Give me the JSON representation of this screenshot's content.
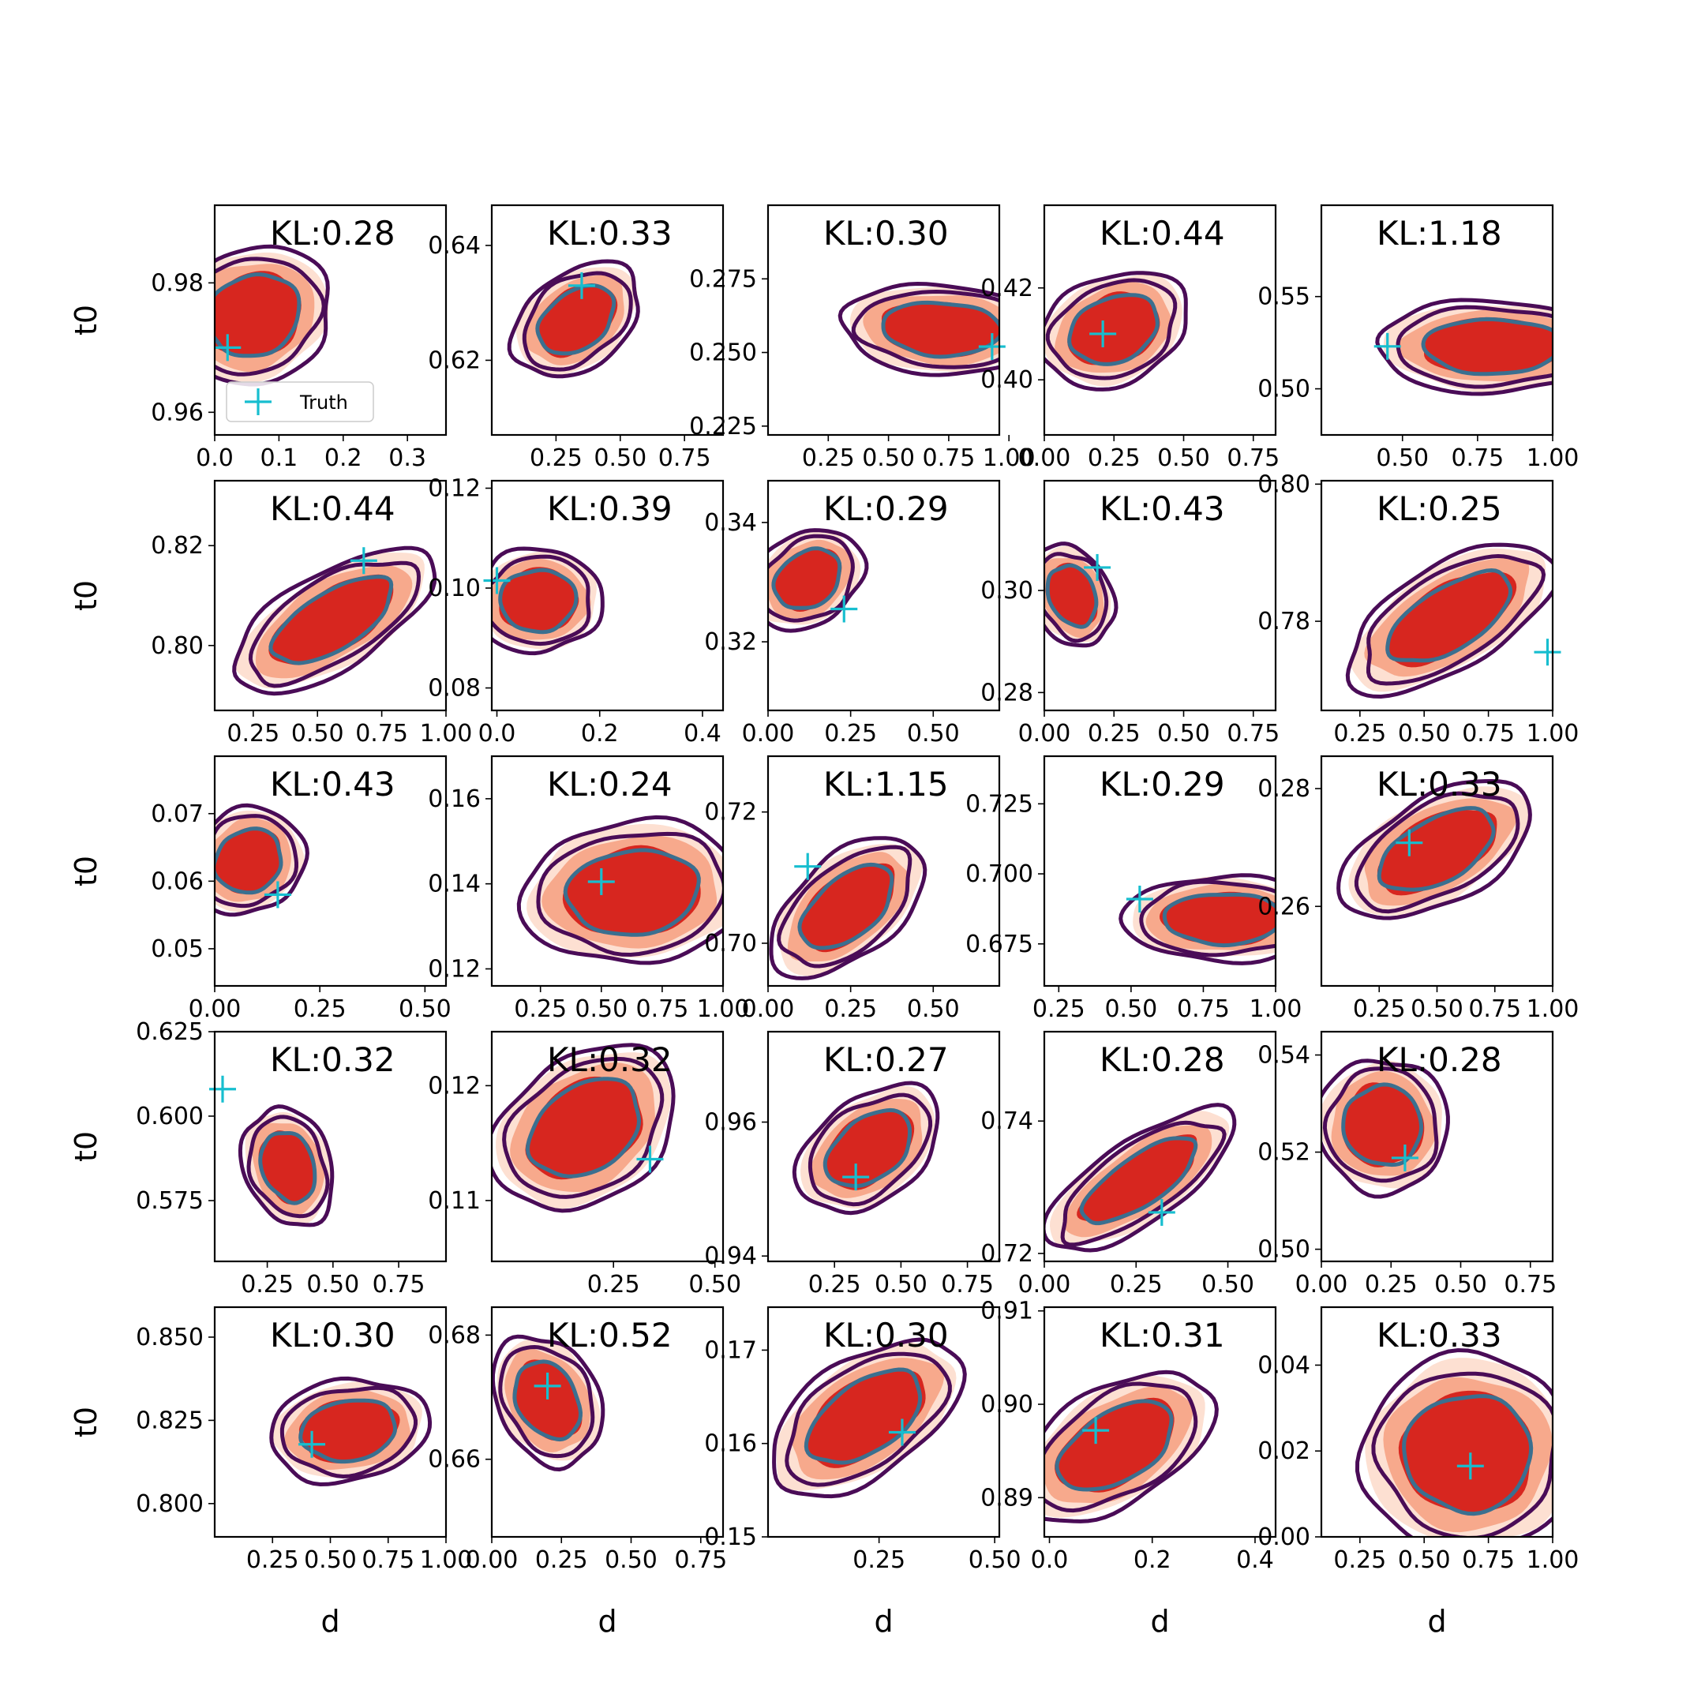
{
  "colors": {
    "truth": "#17becf",
    "fill_light": "#fde0d2",
    "fill_mid": "#f7a98c",
    "fill_dark": "#d7261f",
    "contour_outer": "#4a0c57",
    "contour_inner": "#3b6f8f"
  },
  "legend": {
    "marker": "+",
    "label": "Truth",
    "placement": "lower left (first panel)"
  },
  "chart_data": {
    "type": "scatter",
    "grid": false,
    "layout": {
      "rows": 5,
      "cols": 5
    },
    "xlabel": "d",
    "ylabel": "t0",
    "panels": [
      {
        "kl": "KL:0.28",
        "xticks": [
          "0.0",
          "0.1",
          "0.2",
          "0.3"
        ],
        "xtv": [
          0,
          0.1,
          0.2,
          0.3
        ],
        "xlim": [
          0,
          0.36
        ],
        "yticks": [
          "0.96",
          "0.98"
        ],
        "ytv": [
          0.96,
          0.98
        ],
        "ylim": [
          0.9565,
          0.992
        ],
        "truth": [
          0.02,
          0.97
        ],
        "center": [
          0.06,
          0.975
        ],
        "spread": [
          0.09,
          0.0075
        ],
        "tilt": -0.35
      },
      {
        "kl": "KL:0.33",
        "xticks": [
          "0.25",
          "0.50",
          "0.75"
        ],
        "xtv": [
          0.25,
          0.5,
          0.75
        ],
        "xlim": [
          0,
          0.9
        ],
        "yticks": [
          "0.62",
          "0.64"
        ],
        "ytv": [
          0.62,
          0.64
        ],
        "ylim": [
          0.607,
          0.647
        ],
        "truth": [
          0.35,
          0.633
        ],
        "center": [
          0.33,
          0.627
        ],
        "spread": [
          0.2,
          0.006
        ],
        "tilt": -0.65
      },
      {
        "kl": "KL:0.30",
        "xticks": [
          "0.25",
          "0.50",
          "0.75",
          "1.00"
        ],
        "xtv": [
          0.25,
          0.5,
          0.75,
          1.0
        ],
        "xlim": [
          0,
          0.96
        ],
        "yticks": [
          "0.225",
          "0.250",
          "0.275"
        ],
        "ytv": [
          0.225,
          0.25,
          0.275
        ],
        "ylim": [
          0.222,
          0.3
        ],
        "truth": [
          0.93,
          0.252
        ],
        "center": [
          0.72,
          0.258
        ],
        "spread": [
          0.3,
          0.011
        ],
        "tilt": 0.05
      },
      {
        "kl": "KL:0.44",
        "xticks": [
          "0.00",
          "0.25",
          "0.50",
          "0.75"
        ],
        "xtv": [
          0,
          0.25,
          0.5,
          0.75
        ],
        "xlim": [
          0,
          0.83
        ],
        "yticks": [
          "0.40",
          "0.42"
        ],
        "ytv": [
          0.4,
          0.42
        ],
        "ylim": [
          0.388,
          0.438
        ],
        "truth": [
          0.21,
          0.41
        ],
        "center": [
          0.25,
          0.411
        ],
        "spread": [
          0.2,
          0.0085
        ],
        "tilt": -0.4
      },
      {
        "kl": "KL:1.18",
        "xticks": [
          "0.50",
          "0.75",
          "1.00"
        ],
        "xtv": [
          0.5,
          0.75,
          1.0
        ],
        "xlim": [
          0.23,
          1.0
        ],
        "yticks": [
          "0.50",
          "0.55"
        ],
        "ytv": [
          0.5,
          0.55
        ],
        "ylim": [
          0.475,
          0.5995
        ],
        "truth": [
          0.45,
          0.523
        ],
        "center": [
          0.8,
          0.523
        ],
        "spread": [
          0.28,
          0.018
        ],
        "tilt": 0.0
      },
      {
        "kl": "KL:0.44",
        "xticks": [
          "0.25",
          "0.50",
          "0.75",
          "1.00"
        ],
        "xtv": [
          0.25,
          0.5,
          0.75,
          1.0
        ],
        "xlim": [
          0.1,
          1.0
        ],
        "yticks": [
          "0.80",
          "0.82"
        ],
        "ytv": [
          0.8,
          0.82
        ],
        "ylim": [
          0.787,
          0.833
        ],
        "truth": [
          0.68,
          0.817
        ],
        "center": [
          0.56,
          0.805
        ],
        "spread": [
          0.32,
          0.007
        ],
        "tilt": -0.55
      },
      {
        "kl": "KL:0.39",
        "xticks": [
          "0.0",
          "0.2",
          "0.4"
        ],
        "xtv": [
          0,
          0.2,
          0.4
        ],
        "xlim": [
          -0.01,
          0.44
        ],
        "yticks": [
          "0.08",
          "0.10",
          "0.12"
        ],
        "ytv": [
          0.08,
          0.1,
          0.12
        ],
        "ylim": [
          0.0755,
          0.1215
        ],
        "truth": [
          0.0,
          0.1015
        ],
        "center": [
          0.08,
          0.0975
        ],
        "spread": [
          0.09,
          0.0075
        ],
        "tilt": -0.05
      },
      {
        "kl": "KL:0.29",
        "xticks": [
          "0.00",
          "0.25",
          "0.50"
        ],
        "xtv": [
          0,
          0.25,
          0.5
        ],
        "xlim": [
          0,
          0.7
        ],
        "yticks": [
          "0.32",
          "0.34"
        ],
        "ytv": [
          0.32,
          0.34
        ],
        "ylim": [
          0.3085,
          0.347
        ],
        "truth": [
          0.23,
          0.3255
        ],
        "center": [
          0.12,
          0.3305
        ],
        "spread": [
          0.13,
          0.0055
        ],
        "tilt": -0.6
      },
      {
        "kl": "KL:0.43",
        "xticks": [
          "0.00",
          "0.25",
          "0.50",
          "0.75"
        ],
        "xtv": [
          0,
          0.25,
          0.5,
          0.75
        ],
        "xlim": [
          0,
          0.83
        ],
        "yticks": [
          "0.28",
          "0.30"
        ],
        "ytv": [
          0.28,
          0.3
        ],
        "ylim": [
          0.2765,
          0.3215
        ],
        "truth": [
          0.19,
          0.3045
        ],
        "center": [
          0.1,
          0.299
        ],
        "spread": [
          0.1,
          0.0075
        ],
        "tilt": -0.4
      },
      {
        "kl": "KL:0.25",
        "xticks": [
          "0.25",
          "0.50",
          "0.75",
          "1.00"
        ],
        "xtv": [
          0.25,
          0.5,
          0.75,
          1.0
        ],
        "xlim": [
          0.1,
          1.0
        ],
        "yticks": [
          "0.78",
          "0.80"
        ],
        "ytv": [
          0.78,
          0.8
        ],
        "ylim": [
          0.767,
          0.8005
        ],
        "truth": [
          0.98,
          0.7755
        ],
        "center": [
          0.6,
          0.7805
        ],
        "spread": [
          0.33,
          0.0055
        ],
        "tilt": -0.55
      },
      {
        "kl": "KL:0.43",
        "xticks": [
          "0.00",
          "0.25",
          "0.50"
        ],
        "xtv": [
          0,
          0.25,
          0.5
        ],
        "xlim": [
          0,
          0.55
        ],
        "yticks": [
          "0.05",
          "0.06",
          "0.07"
        ],
        "ytv": [
          0.05,
          0.06,
          0.07
        ],
        "ylim": [
          0.0445,
          0.0785
        ],
        "truth": [
          0.15,
          0.058
        ],
        "center": [
          0.08,
          0.063
        ],
        "spread": [
          0.1,
          0.0055
        ],
        "tilt": -0.6
      },
      {
        "kl": "KL:0.24",
        "xticks": [
          "0.25",
          "0.50",
          "0.75",
          "1.00"
        ],
        "xtv": [
          0.25,
          0.5,
          0.75,
          1.0
        ],
        "xlim": [
          0.05,
          1.0
        ],
        "yticks": [
          "0.12",
          "0.14",
          "0.16"
        ],
        "ytv": [
          0.12,
          0.14,
          0.16
        ],
        "ylim": [
          0.116,
          0.17
        ],
        "truth": [
          0.5,
          0.1405
        ],
        "center": [
          0.63,
          0.138
        ],
        "spread": [
          0.33,
          0.012
        ],
        "tilt": -0.1
      },
      {
        "kl": "KL:1.15",
        "xticks": [
          "0.00",
          "0.25",
          "0.50"
        ],
        "xtv": [
          0,
          0.25,
          0.5
        ],
        "xlim": [
          0,
          0.7
        ],
        "yticks": [
          "0.70",
          "0.72"
        ],
        "ytv": [
          0.7,
          0.72
        ],
        "ylim": [
          0.6935,
          0.7285
        ],
        "truth": [
          0.12,
          0.7117
        ],
        "center": [
          0.24,
          0.7055
        ],
        "spread": [
          0.2,
          0.0055
        ],
        "tilt": -0.7
      },
      {
        "kl": "KL:0.29",
        "xticks": [
          "0.25",
          "0.50",
          "0.75",
          "1.00"
        ],
        "xtv": [
          0.25,
          0.5,
          0.75,
          1.0
        ],
        "xlim": [
          0.2,
          1.0
        ],
        "yticks": [
          "0.675",
          "0.700",
          "0.725"
        ],
        "ytv": [
          0.675,
          0.7,
          0.725
        ],
        "ylim": [
          0.66,
          0.742
        ],
        "truth": [
          0.53,
          0.691
        ],
        "center": [
          0.82,
          0.684
        ],
        "spread": [
          0.25,
          0.011
        ],
        "tilt": 0.0
      },
      {
        "kl": "KL:0.33",
        "xticks": [
          "0.25",
          "0.50",
          "0.75",
          "1.00"
        ],
        "xtv": [
          0.25,
          0.5,
          0.75,
          1.0
        ],
        "xlim": [
          0,
          1.0
        ],
        "yticks": [
          "0.26",
          "0.28"
        ],
        "ytv": [
          0.26,
          0.28
        ],
        "ylim": [
          0.2465,
          0.2855
        ],
        "truth": [
          0.38,
          0.2708
        ],
        "center": [
          0.5,
          0.2695
        ],
        "spread": [
          0.33,
          0.0065
        ],
        "tilt": -0.5
      },
      {
        "kl": "KL:0.32",
        "xticks": [
          "0.25",
          "0.50",
          "0.75"
        ],
        "xtv": [
          0.25,
          0.5,
          0.75
        ],
        "xlim": [
          0.05,
          0.93
        ],
        "yticks": [
          "0.575",
          "0.600",
          "0.625"
        ],
        "ytv": [
          0.575,
          0.6,
          0.625
        ],
        "ylim": [
          0.557,
          0.625
        ],
        "truth": [
          0.08,
          0.608
        ],
        "center": [
          0.33,
          0.585
        ],
        "spread": [
          0.12,
          0.013
        ],
        "tilt": -0.35
      },
      {
        "kl": "KL:0.32",
        "xticks": [
          "0.25",
          "0.50"
        ],
        "xtv": [
          0.25,
          0.5
        ],
        "xlim": [
          -0.05,
          0.52
        ],
        "yticks": [
          "0.11",
          "0.12"
        ],
        "ytv": [
          0.11,
          0.12
        ],
        "ylim": [
          0.1047,
          0.1247
        ],
        "truth": [
          0.34,
          0.1136
        ],
        "center": [
          0.18,
          0.1163
        ],
        "spread": [
          0.18,
          0.0045
        ],
        "tilt": -0.6
      },
      {
        "kl": "KL:0.27",
        "xticks": [
          "0.25",
          "0.50",
          "0.75"
        ],
        "xtv": [
          0.25,
          0.5,
          0.75
        ],
        "xlim": [
          0,
          0.87
        ],
        "yticks": [
          "0.94",
          "0.96"
        ],
        "ytv": [
          0.94,
          0.96
        ],
        "ylim": [
          0.9392,
          0.9735
        ],
        "truth": [
          0.33,
          0.9518
        ],
        "center": [
          0.38,
          0.956
        ],
        "spread": [
          0.22,
          0.0055
        ],
        "tilt": -0.65
      },
      {
        "kl": "KL:0.28",
        "xticks": [
          "0.00",
          "0.25",
          "0.50"
        ],
        "xtv": [
          0,
          0.25,
          0.5
        ],
        "xlim": [
          0,
          0.63
        ],
        "yticks": [
          "0.72",
          "0.74"
        ],
        "ytv": [
          0.72,
          0.74
        ],
        "ylim": [
          0.7188,
          0.7535
        ],
        "truth": [
          0.32,
          0.7262
        ],
        "center": [
          0.26,
          0.731
        ],
        "spread": [
          0.22,
          0.0045
        ],
        "tilt": -0.6
      },
      {
        "kl": "KL:0.28",
        "xticks": [
          "0.00",
          "0.25",
          "0.50",
          "0.75"
        ],
        "xtv": [
          0,
          0.25,
          0.5,
          0.75
        ],
        "xlim": [
          0,
          0.83
        ],
        "yticks": [
          "0.50",
          "0.52",
          "0.54"
        ],
        "ytv": [
          0.5,
          0.52,
          0.54
        ],
        "ylim": [
          0.4975,
          0.5448
        ],
        "truth": [
          0.3,
          0.5188
        ],
        "center": [
          0.22,
          0.5255
        ],
        "spread": [
          0.17,
          0.01
        ],
        "tilt": -0.4
      },
      {
        "kl": "KL:0.30",
        "xticks": [
          "0.25",
          "0.50",
          "0.75",
          "1.00"
        ],
        "xtv": [
          0.25,
          0.5,
          0.75,
          1.0
        ],
        "xlim": [
          0,
          1.0
        ],
        "yticks": [
          "0.800",
          "0.825",
          "0.850"
        ],
        "ytv": [
          0.8,
          0.825,
          0.85
        ],
        "ylim": [
          0.79,
          0.859
        ],
        "truth": [
          0.42,
          0.8178
        ],
        "center": [
          0.58,
          0.822
        ],
        "spread": [
          0.25,
          0.011
        ],
        "tilt": -0.15
      },
      {
        "kl": "KL:0.52",
        "xticks": [
          "0.00",
          "0.25",
          "0.50",
          "0.75"
        ],
        "xtv": [
          0,
          0.25,
          0.5,
          0.75
        ],
        "xlim": [
          0,
          0.83
        ],
        "yticks": [
          "0.66",
          "0.68"
        ],
        "ytv": [
          0.66,
          0.68
        ],
        "ylim": [
          0.6475,
          0.6845
        ],
        "truth": [
          0.2,
          0.6718
        ],
        "center": [
          0.2,
          0.6695
        ],
        "spread": [
          0.13,
          0.008
        ],
        "tilt": -0.5
      },
      {
        "kl": "KL:0.30",
        "xticks": [
          "0.25",
          "0.50"
        ],
        "xtv": [
          0.25,
          0.5
        ],
        "xlim": [
          0.01,
          0.51
        ],
        "yticks": [
          "0.15",
          "0.16",
          "0.17"
        ],
        "ytv": [
          0.15,
          0.16,
          0.17
        ],
        "ylim": [
          0.15,
          0.1746
        ],
        "truth": [
          0.3,
          0.1612
        ],
        "center": [
          0.22,
          0.1628
        ],
        "spread": [
          0.17,
          0.0045
        ],
        "tilt": -0.6
      },
      {
        "kl": "KL:0.31",
        "xticks": [
          "0.0",
          "0.2",
          "0.4"
        ],
        "xtv": [
          0,
          0.2,
          0.4
        ],
        "xlim": [
          -0.01,
          0.44
        ],
        "yticks": [
          "0.89",
          "0.90",
          "0.91"
        ],
        "ytv": [
          0.89,
          0.9,
          0.91
        ],
        "ylim": [
          0.8858,
          0.9104
        ],
        "truth": [
          0.09,
          0.8972
        ],
        "center": [
          0.13,
          0.8955
        ],
        "spread": [
          0.15,
          0.0045
        ],
        "tilt": -0.55
      },
      {
        "kl": "KL:0.33",
        "xticks": [
          "0.25",
          "0.50",
          "0.75",
          "1.00"
        ],
        "xtv": [
          0.25,
          0.5,
          0.75,
          1.0
        ],
        "xlim": [
          0.1,
          1.0
        ],
        "yticks": [
          "0.00",
          "0.02",
          "0.04"
        ],
        "ytv": [
          0,
          0.02,
          0.04
        ],
        "ylim": [
          0,
          0.0535
        ],
        "truth": [
          0.68,
          0.0165
        ],
        "center": [
          0.67,
          0.0195
        ],
        "spread": [
          0.3,
          0.0165
        ],
        "tilt": 0.0
      }
    ]
  }
}
